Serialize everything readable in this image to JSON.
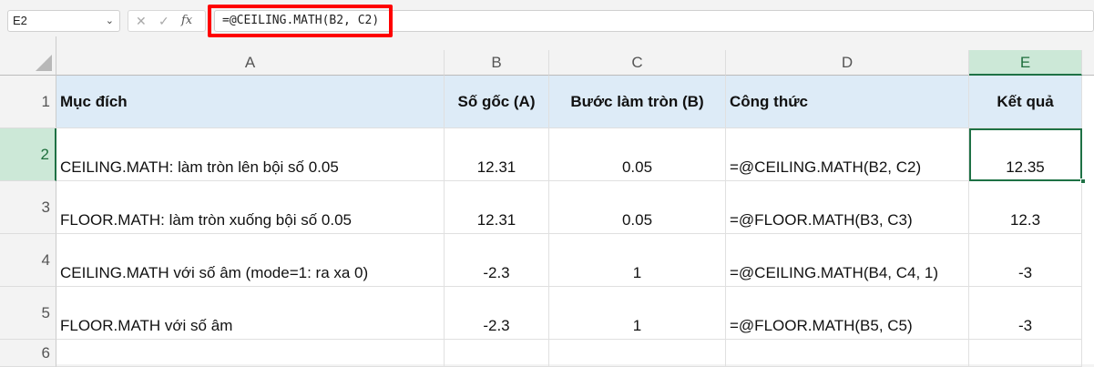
{
  "formula_bar": {
    "name_box": "E2",
    "formula": "=@CEILING.MATH(B2, C2)",
    "fx_label": "fx"
  },
  "columns": [
    "A",
    "B",
    "C",
    "D",
    "E"
  ],
  "rows": [
    "1",
    "2",
    "3",
    "4",
    "5",
    "6"
  ],
  "header": [
    "Mục đích",
    "Số gốc (A)",
    "Bước làm tròn (B)",
    "Công thức",
    "Kết quả"
  ],
  "data": [
    [
      "CEILING.MATH: làm tròn lên bội số 0.05",
      "12.31",
      "0.05",
      "=@CEILING.MATH(B2, C2)",
      "12.35"
    ],
    [
      "FLOOR.MATH: làm tròn xuống bội số 0.05",
      "12.31",
      "0.05",
      "=@FLOOR.MATH(B3, C3)",
      "12.3"
    ],
    [
      "CEILING.MATH với số âm (mode=1: ra xa 0)",
      "-2.3",
      "1",
      "=@CEILING.MATH(B4, C4, 1)",
      "-3"
    ],
    [
      "FLOOR.MATH với số âm",
      "-2.3",
      "1",
      "=@FLOOR.MATH(B5, C5)",
      "-3"
    ]
  ],
  "colors": {
    "header_fill": "#ddebf7",
    "selection": "#1e7145",
    "highlight_box": "#ff0000"
  }
}
